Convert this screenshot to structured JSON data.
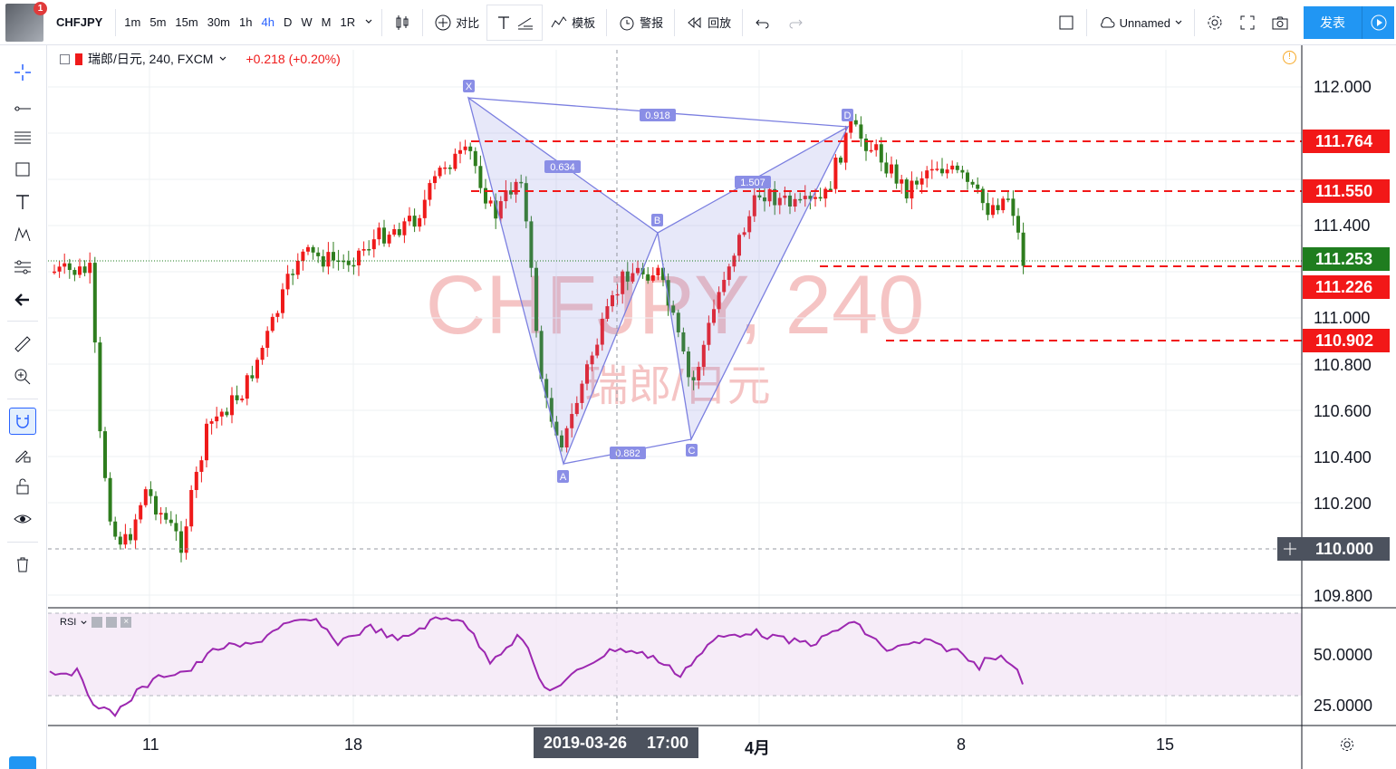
{
  "topbar": {
    "avatar_badge": "1",
    "symbol": "CHFJPY",
    "intervals": [
      "1m",
      "5m",
      "15m",
      "30m",
      "1h",
      "4h",
      "D",
      "W",
      "M",
      "1R"
    ],
    "active_interval": "4h",
    "compare_label": "对比",
    "template_label": "模板",
    "alert_label": "警报",
    "replay_label": "回放",
    "layout_name": "Unnamed",
    "publish_label": "发表"
  },
  "legend": {
    "title": "瑞郎/日元, 240, FXCM",
    "change": "+0.218 (+0.20%)",
    "rsi_label": "RSI"
  },
  "watermark": {
    "main": "CHFJPY, 240",
    "sub": "瑞郎/日元"
  },
  "price_axis": [
    "112.000",
    "111.400",
    "111.000",
    "110.800",
    "110.600",
    "110.400",
    "110.200",
    "109.800"
  ],
  "price_labels": [
    {
      "value": "111.764",
      "color": "#f21818"
    },
    {
      "value": "111.550",
      "color": "#f21818"
    },
    {
      "value": "111.253",
      "color": "#1f7d1f"
    },
    {
      "value": "111.226",
      "color": "#f21818"
    },
    {
      "value": "110.902",
      "color": "#f21818"
    },
    {
      "value": "110.000",
      "color": "#4c525e"
    }
  ],
  "rsi_axis": [
    "50.0000",
    "25.0000"
  ],
  "date_axis": [
    "11",
    "18",
    "4月",
    "8",
    "15"
  ],
  "crosshair": {
    "date": "2019-03-26",
    "time": "17:00"
  },
  "pattern": {
    "points": [
      "X",
      "A",
      "B",
      "C",
      "D"
    ],
    "ratios": [
      "0.918",
      "0.634",
      "1.507",
      "0.882"
    ]
  },
  "colors": {
    "up": "#ef1a1a",
    "down": "#2e7d1e",
    "pattern": "#7b7fe0",
    "rsi": "#9c27b0",
    "accent": "#2196f3"
  }
}
